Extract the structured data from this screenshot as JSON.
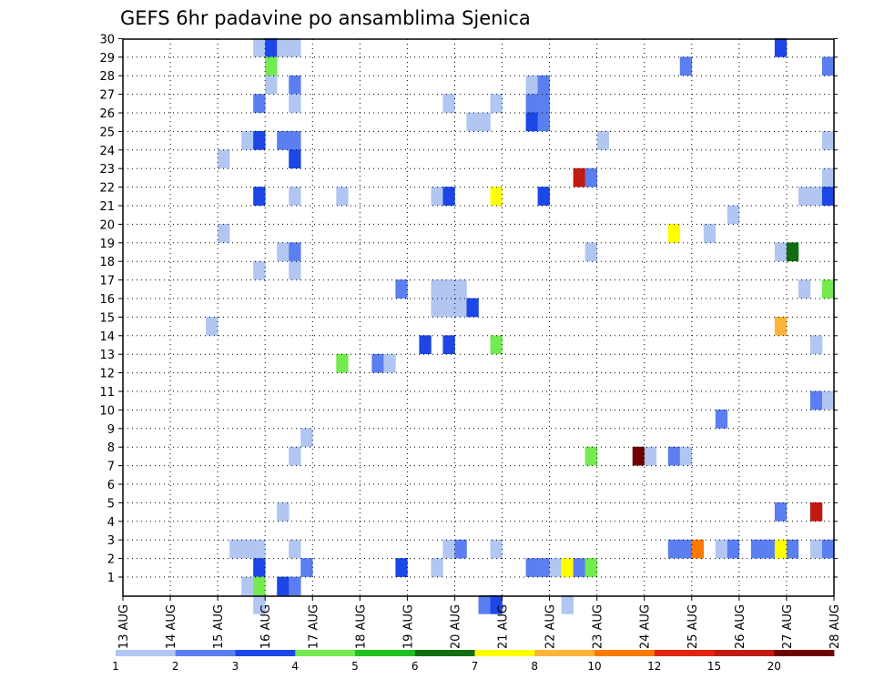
{
  "chart_data": {
    "type": "heatmap",
    "title": "GEFS 6hr padavine po ansamblima Sjenica",
    "xlabel": "",
    "ylabel": "",
    "x_tick_labels": [
      "13 AUG",
      "14 AUG",
      "15 AUG",
      "16 AUG",
      "17 AUG",
      "18 AUG",
      "19 AUG",
      "20 AUG",
      "21 AUG",
      "22 AUG",
      "23 AUG",
      "24 AUG",
      "25 AUG",
      "26 AUG",
      "27 AUG",
      "28 AUG"
    ],
    "y_tick_labels": [
      "1",
      "2",
      "3",
      "4",
      "5",
      "6",
      "7",
      "8",
      "9",
      "10",
      "11",
      "12",
      "13",
      "14",
      "15",
      "16",
      "17",
      "18",
      "19",
      "20",
      "21",
      "22",
      "23",
      "24",
      "25",
      "26",
      "27",
      "28",
      "29",
      "30"
    ],
    "x_unit": "6-hour step from 13 AUG 00Z",
    "xlim": [
      0,
      60
    ],
    "ylim": [
      0,
      30
    ],
    "grid": true,
    "legend_placement": "bottom",
    "legend": {
      "colors": [
        "#b2c6f2",
        "#5b7ff0",
        "#1c47e6",
        "#73ea4f",
        "#1fc21f",
        "#106e10",
        "#ffff00",
        "#fbb53b",
        "#ff7a00",
        "#e2240c",
        "#c21a12",
        "#6f0000"
      ],
      "labels": [
        "1",
        "2",
        "3",
        "4",
        "5",
        "6",
        "7",
        "8",
        "10",
        "12",
        "15",
        "20"
      ]
    },
    "category_colors": [
      "#ffffff",
      "#b2c6f2",
      "#5b7ff0",
      "#1c47e6",
      "#73ea4f",
      "#1fc21f",
      "#106e10",
      "#ffff00",
      "#fbb53b",
      "#ff7a00",
      "#e2240c",
      "#c21a12",
      "#6f0000"
    ],
    "cells": [
      [
        11,
        29,
        1
      ],
      [
        12,
        29,
        3
      ],
      [
        13,
        29,
        1
      ],
      [
        14,
        29,
        1
      ],
      [
        55,
        29,
        3
      ],
      [
        12,
        28,
        4
      ],
      [
        47,
        28,
        2
      ],
      [
        59,
        28,
        2
      ],
      [
        12,
        27,
        1
      ],
      [
        14,
        27,
        2
      ],
      [
        34,
        27,
        1
      ],
      [
        35,
        27,
        2
      ],
      [
        11,
        26,
        2
      ],
      [
        14,
        26,
        1
      ],
      [
        27,
        26,
        1
      ],
      [
        31,
        26,
        1
      ],
      [
        34,
        26,
        2
      ],
      [
        35,
        26,
        2
      ],
      [
        34,
        25,
        3
      ],
      [
        35,
        25,
        2
      ],
      [
        30,
        25,
        1
      ],
      [
        29,
        25,
        1
      ],
      [
        10,
        24,
        1
      ],
      [
        11,
        24,
        3
      ],
      [
        13,
        24,
        2
      ],
      [
        14,
        24,
        2
      ],
      [
        40,
        24,
        1
      ],
      [
        59,
        24,
        1
      ],
      [
        8,
        23,
        1
      ],
      [
        14,
        23,
        3
      ],
      [
        38,
        22,
        11
      ],
      [
        39,
        22,
        2
      ],
      [
        59,
        22,
        1
      ],
      [
        11,
        21,
        3
      ],
      [
        14,
        21,
        1
      ],
      [
        18,
        21,
        1
      ],
      [
        26,
        21,
        1
      ],
      [
        27,
        21,
        3
      ],
      [
        31,
        21,
        7
      ],
      [
        35,
        21,
        3
      ],
      [
        57,
        21,
        1
      ],
      [
        58,
        21,
        1
      ],
      [
        59,
        21,
        3
      ],
      [
        51,
        20,
        1
      ],
      [
        8,
        19,
        1
      ],
      [
        46,
        19,
        7
      ],
      [
        49,
        19,
        1
      ],
      [
        13,
        18,
        1
      ],
      [
        14,
        18,
        2
      ],
      [
        39,
        18,
        1
      ],
      [
        55,
        18,
        1
      ],
      [
        56,
        18,
        6
      ],
      [
        11,
        17,
        1
      ],
      [
        14,
        17,
        1
      ],
      [
        23,
        16,
        2
      ],
      [
        26,
        16,
        1
      ],
      [
        27,
        16,
        1
      ],
      [
        28,
        16,
        1
      ],
      [
        57,
        16,
        1
      ],
      [
        59,
        16,
        4
      ],
      [
        26,
        15,
        1
      ],
      [
        27,
        15,
        1
      ],
      [
        28,
        15,
        1
      ],
      [
        29,
        15,
        3
      ],
      [
        7,
        14,
        1
      ],
      [
        55,
        14,
        8
      ],
      [
        25,
        13,
        3
      ],
      [
        27,
        13,
        3
      ],
      [
        31,
        13,
        4
      ],
      [
        58,
        13,
        1
      ],
      [
        18,
        12,
        4
      ],
      [
        21,
        12,
        2
      ],
      [
        22,
        12,
        1
      ],
      [
        58,
        10,
        2
      ],
      [
        59,
        10,
        1
      ],
      [
        50,
        9,
        2
      ],
      [
        15,
        8,
        1
      ],
      [
        14,
        7,
        1
      ],
      [
        39,
        7,
        4
      ],
      [
        43,
        7,
        12
      ],
      [
        44,
        7,
        1
      ],
      [
        46,
        7,
        2
      ],
      [
        47,
        7,
        1
      ],
      [
        13,
        4,
        1
      ],
      [
        55,
        4,
        2
      ],
      [
        58,
        4,
        11
      ],
      [
        9,
        2,
        1
      ],
      [
        10,
        2,
        1
      ],
      [
        11,
        2,
        1
      ],
      [
        14,
        2,
        1
      ],
      [
        27,
        2,
        1
      ],
      [
        28,
        2,
        2
      ],
      [
        31,
        2,
        1
      ],
      [
        46,
        2,
        2
      ],
      [
        47,
        2,
        2
      ],
      [
        48,
        2,
        9
      ],
      [
        50,
        2,
        1
      ],
      [
        51,
        2,
        2
      ],
      [
        53,
        2,
        2
      ],
      [
        54,
        2,
        2
      ],
      [
        55,
        2,
        7
      ],
      [
        56,
        2,
        2
      ],
      [
        58,
        2,
        1
      ],
      [
        59,
        2,
        2
      ],
      [
        11,
        1,
        3
      ],
      [
        15,
        1,
        2
      ],
      [
        23,
        1,
        3
      ],
      [
        26,
        1,
        1
      ],
      [
        34,
        1,
        2
      ],
      [
        35,
        1,
        2
      ],
      [
        36,
        1,
        1
      ],
      [
        37,
        1,
        7
      ],
      [
        38,
        1,
        2
      ],
      [
        39,
        1,
        4
      ],
      [
        10,
        0,
        1
      ],
      [
        11,
        0,
        4
      ],
      [
        13,
        0,
        3
      ],
      [
        14,
        0,
        2
      ],
      [
        11,
        -1,
        1
      ],
      [
        30,
        -1,
        2
      ],
      [
        31,
        -1,
        3
      ],
      [
        37,
        -1,
        1
      ]
    ]
  }
}
